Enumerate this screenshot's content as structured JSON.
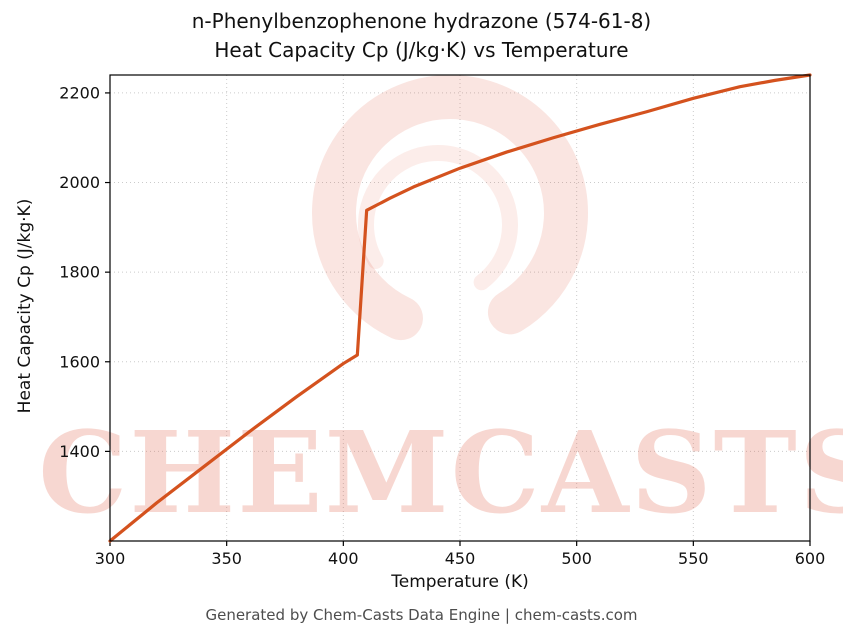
{
  "chart_data": {
    "type": "line",
    "title": "n-Phenylbenzophenone hydrazone (574-61-8)",
    "subtitle": "Heat Capacity Cp (J/kg·K) vs Temperature",
    "xlabel": "Temperature (K)",
    "ylabel": "Heat Capacity Cp (J/kg·K)",
    "xlim": [
      300,
      600
    ],
    "ylim": [
      1200,
      2240
    ],
    "x_ticks": [
      300,
      350,
      400,
      450,
      500,
      550,
      600
    ],
    "y_ticks": [
      1400,
      1600,
      1800,
      2000,
      2200
    ],
    "grid": true,
    "legend": "none",
    "line_color": "#d4521e",
    "series": [
      {
        "name": "Heat Capacity Cp",
        "x": [
          300,
          320,
          340,
          360,
          380,
          400,
          406,
          410,
          420,
          430,
          450,
          470,
          490,
          510,
          530,
          550,
          570,
          585,
          600
        ],
        "y": [
          1200,
          1285,
          1365,
          1445,
          1522,
          1596,
          1615,
          1938,
          1965,
          1990,
          2032,
          2068,
          2100,
          2130,
          2158,
          2188,
          2214,
          2228,
          2240
        ]
      }
    ]
  },
  "watermark": {
    "text": "CHEMCASTS",
    "color": "#dd4f33"
  },
  "footer": {
    "text": "Generated by Chem-Casts Data Engine | chem-casts.com"
  }
}
